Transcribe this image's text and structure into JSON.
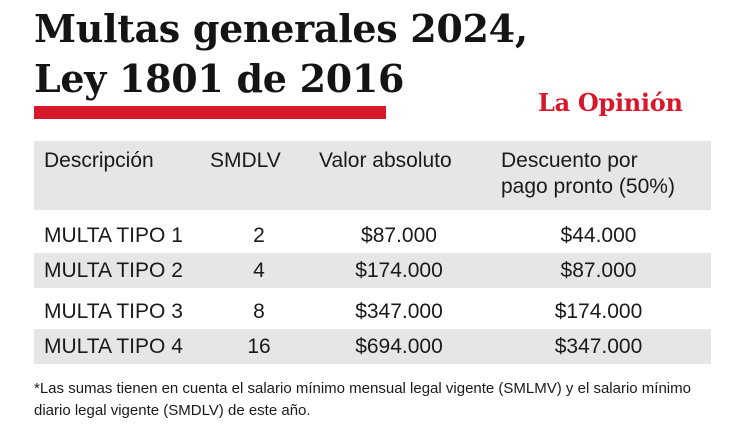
{
  "title": {
    "line1": "Multas generales 2024,",
    "line2": "Ley 1801 de 2016"
  },
  "brand": "La Opinión",
  "colors": {
    "accent": "#d7182a",
    "row_shade": "#e6e6e6"
  },
  "table": {
    "headers": {
      "descripcion": "Descripción",
      "smdlv": "SMDLV",
      "valor": "Valor absoluto",
      "descuento_line1": "Descuento por",
      "descuento_line2": "pago pronto (50%)"
    },
    "rows": [
      {
        "descripcion": "MULTA TIPO 1",
        "smdlv": "2",
        "valor": "$87.000",
        "descuento": "$44.000"
      },
      {
        "descripcion": "MULTA TIPO 2",
        "smdlv": "4",
        "valor": "$174.000",
        "descuento": "$87.000"
      },
      {
        "descripcion": "MULTA TIPO 3",
        "smdlv": "8",
        "valor": "$347.000",
        "descuento": "$174.000"
      },
      {
        "descripcion": "MULTA TIPO 4",
        "smdlv": "16",
        "valor": "$694.000",
        "descuento": "$347.000"
      }
    ]
  },
  "footnote": "*Las sumas tienen en cuenta el salario mínimo mensual legal vigente (SMLMV) y el salario mínimo diario legal vigente (SMDLV) de este año."
}
